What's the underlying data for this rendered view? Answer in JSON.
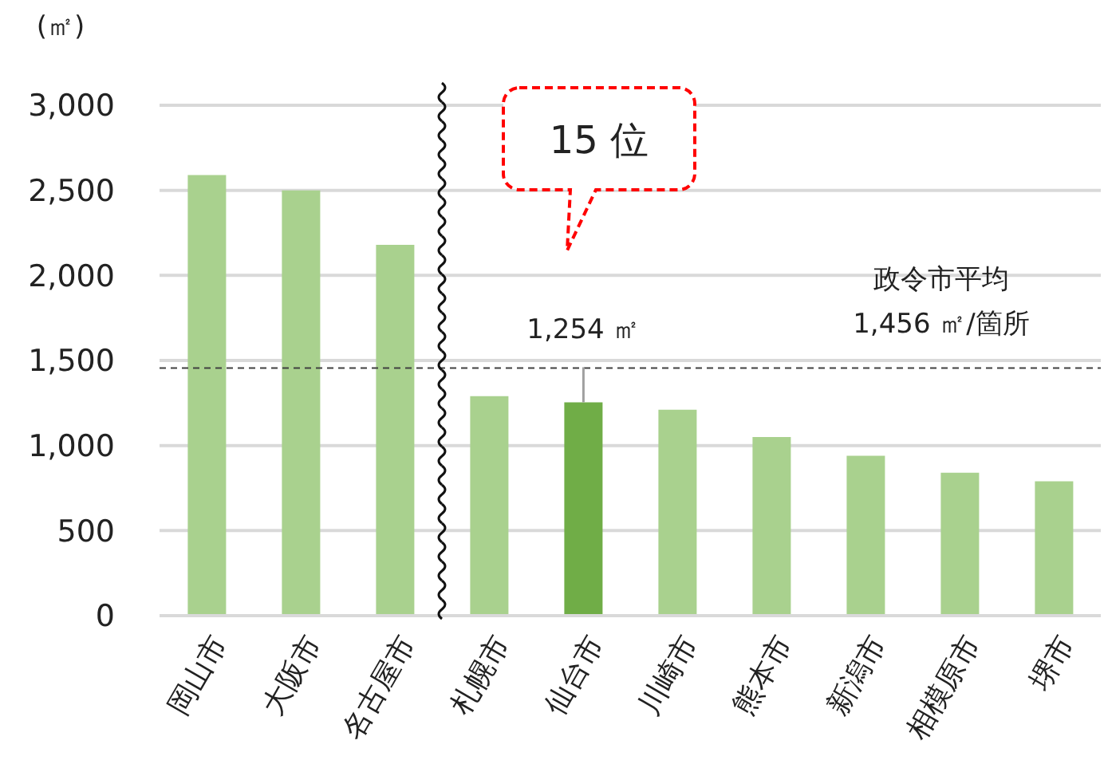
{
  "chart_data": {
    "type": "bar",
    "ylabel": "(㎡)",
    "categories": [
      "岡山市",
      "大阪市",
      "名古屋市",
      "札幌市",
      "仙台市",
      "川崎市",
      "熊本市",
      "新潟市",
      "相模原市",
      "堺市"
    ],
    "values": [
      2590,
      2500,
      2180,
      1290,
      1254,
      1210,
      1050,
      940,
      840,
      790
    ],
    "colors": [
      "#a9d18e",
      "#a9d18e",
      "#a9d18e",
      "#a9d18e",
      "#70ad47",
      "#a9d18e",
      "#a9d18e",
      "#a9d18e",
      "#a9d18e",
      "#a9d18e"
    ],
    "value_labels": [
      null,
      null,
      null,
      null,
      "1,254 ㎡",
      null,
      null,
      null,
      null,
      null
    ],
    "ref_lines": [
      {
        "axis": "y",
        "value": 1456,
        "label": "政令市平均\n1,456 ㎡/箇所",
        "color": "#404040",
        "line_style": "dashed"
      }
    ],
    "annotations": [
      "15 位"
    ],
    "ylim": [
      0,
      3000
    ],
    "yticks": [
      0,
      500,
      {
        "value": 1000,
        "label": "1,000"
      },
      {
        "value": 1500,
        "label": "1,500"
      },
      {
        "value": 2000,
        "label": "2,000"
      },
      {
        "value": 2500,
        "label": "2,500"
      },
      {
        "value": 3000,
        "label": "3,000"
      }
    ],
    "grid": "y",
    "legend": false
  }
}
